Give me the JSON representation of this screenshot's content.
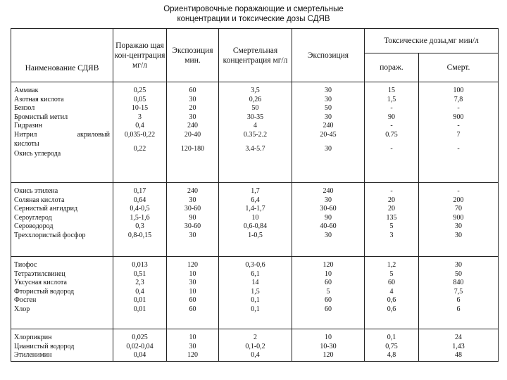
{
  "title": {
    "line1": "Ориентировочные поражающие и смертельные",
    "line2": "концентрации и токсические дозы СДЯВ"
  },
  "headers": {
    "name": "Наименование СДЯВ",
    "damaging_concentration": "Поражаю щая кон-центрация мг/л",
    "exposure1": "Экспозиция мин.",
    "lethal_concentration": "Смертельная концентрация мг/л",
    "exposure2": "Экспозиция",
    "toxic_doses": "Токсические дозы,мг мин/л",
    "toxic_damaging": "пораж.",
    "toxic_lethal": "Смерт."
  },
  "groups": [
    {
      "names": [
        "Аммиак",
        "Азотная кислота",
        "Бензол",
        "Бромистый метил",
        "Гидразин",
        "Нитрил акриловый кислоты",
        "Окись углерода"
      ],
      "conc": [
        "0,25",
        "0,05",
        "10-15",
        "3",
        "0,4",
        "0,035-0,22",
        "",
        "0,22"
      ],
      "exp1": [
        "60",
        "30",
        "20",
        "30",
        "240",
        "20-40",
        "",
        "120-180"
      ],
      "lethal": [
        "3,5",
        "0,26",
        "50",
        "30-35",
        "4",
        "0.35-2.2",
        "",
        "3.4-5.7"
      ],
      "exp2": [
        "30",
        "30",
        "50",
        "30",
        "240",
        "20-45",
        "",
        "30"
      ],
      "tox_dmg": [
        "15",
        "1,5",
        "-",
        "90",
        "-",
        "0.75",
        "",
        "-"
      ],
      "tox_let": [
        "100",
        "7,8",
        "-",
        "900",
        "-",
        "7",
        "",
        "-"
      ]
    },
    {
      "names": [
        "Окись этилена",
        "Соляная кислота",
        "Сернистый ангидрид",
        "Сероуглерод",
        "Сероводород",
        "Треххлористый фосфор"
      ],
      "conc": [
        "0,17",
        "0,64",
        "0,4-0,5",
        "1,5-1,6",
        "0,3",
        "0,8-0,15"
      ],
      "exp1": [
        "240",
        "30",
        "30-60",
        "90",
        "30-60",
        "30"
      ],
      "lethal": [
        "1,7",
        "6,4",
        "1,4-1,7",
        "10",
        "0,6-0,84",
        "1-0,5"
      ],
      "exp2": [
        "240",
        "30",
        "30-60",
        "90",
        "40-60",
        "30"
      ],
      "tox_dmg": [
        "-",
        "20",
        "20",
        "135",
        "5",
        "3"
      ],
      "tox_let": [
        "-",
        "200",
        "70",
        "900",
        "30",
        "30"
      ]
    },
    {
      "names": [
        "Тиофос",
        "Тетраэтилсвинец",
        "Уксусная кислота",
        "Фтористый водород",
        "Фосген",
        "Хлор"
      ],
      "conc": [
        "0,013",
        "0,51",
        "2,3",
        "0,4",
        "0,01",
        "0,01"
      ],
      "exp1": [
        "120",
        "10",
        "30",
        "10",
        "60",
        "60"
      ],
      "lethal": [
        "0,3-0,6",
        "6,1",
        "14",
        "1,5",
        "0,1",
        "0,1"
      ],
      "exp2": [
        "120",
        "10",
        "60",
        "5",
        "60",
        "60"
      ],
      "tox_dmg": [
        "1,2",
        "5",
        "60",
        "4",
        "0,6",
        "0,6"
      ],
      "tox_let": [
        "30",
        "50",
        "840",
        "7,5",
        "6",
        "6"
      ]
    },
    {
      "names": [
        "Хлорпикрин",
        "Цианистый водород",
        "Этиленимин"
      ],
      "conc": [
        "0,025",
        "0,02-0,04",
        "0,04"
      ],
      "exp1": [
        "10",
        "30",
        "120"
      ],
      "lethal": [
        "2",
        "0,1-0,2",
        "0,4"
      ],
      "exp2": [
        "10",
        "10-30",
        "120"
      ],
      "tox_dmg": [
        "0,1",
        "0,75",
        "4,8"
      ],
      "tox_let": [
        "24",
        "1,43",
        "48"
      ]
    }
  ]
}
